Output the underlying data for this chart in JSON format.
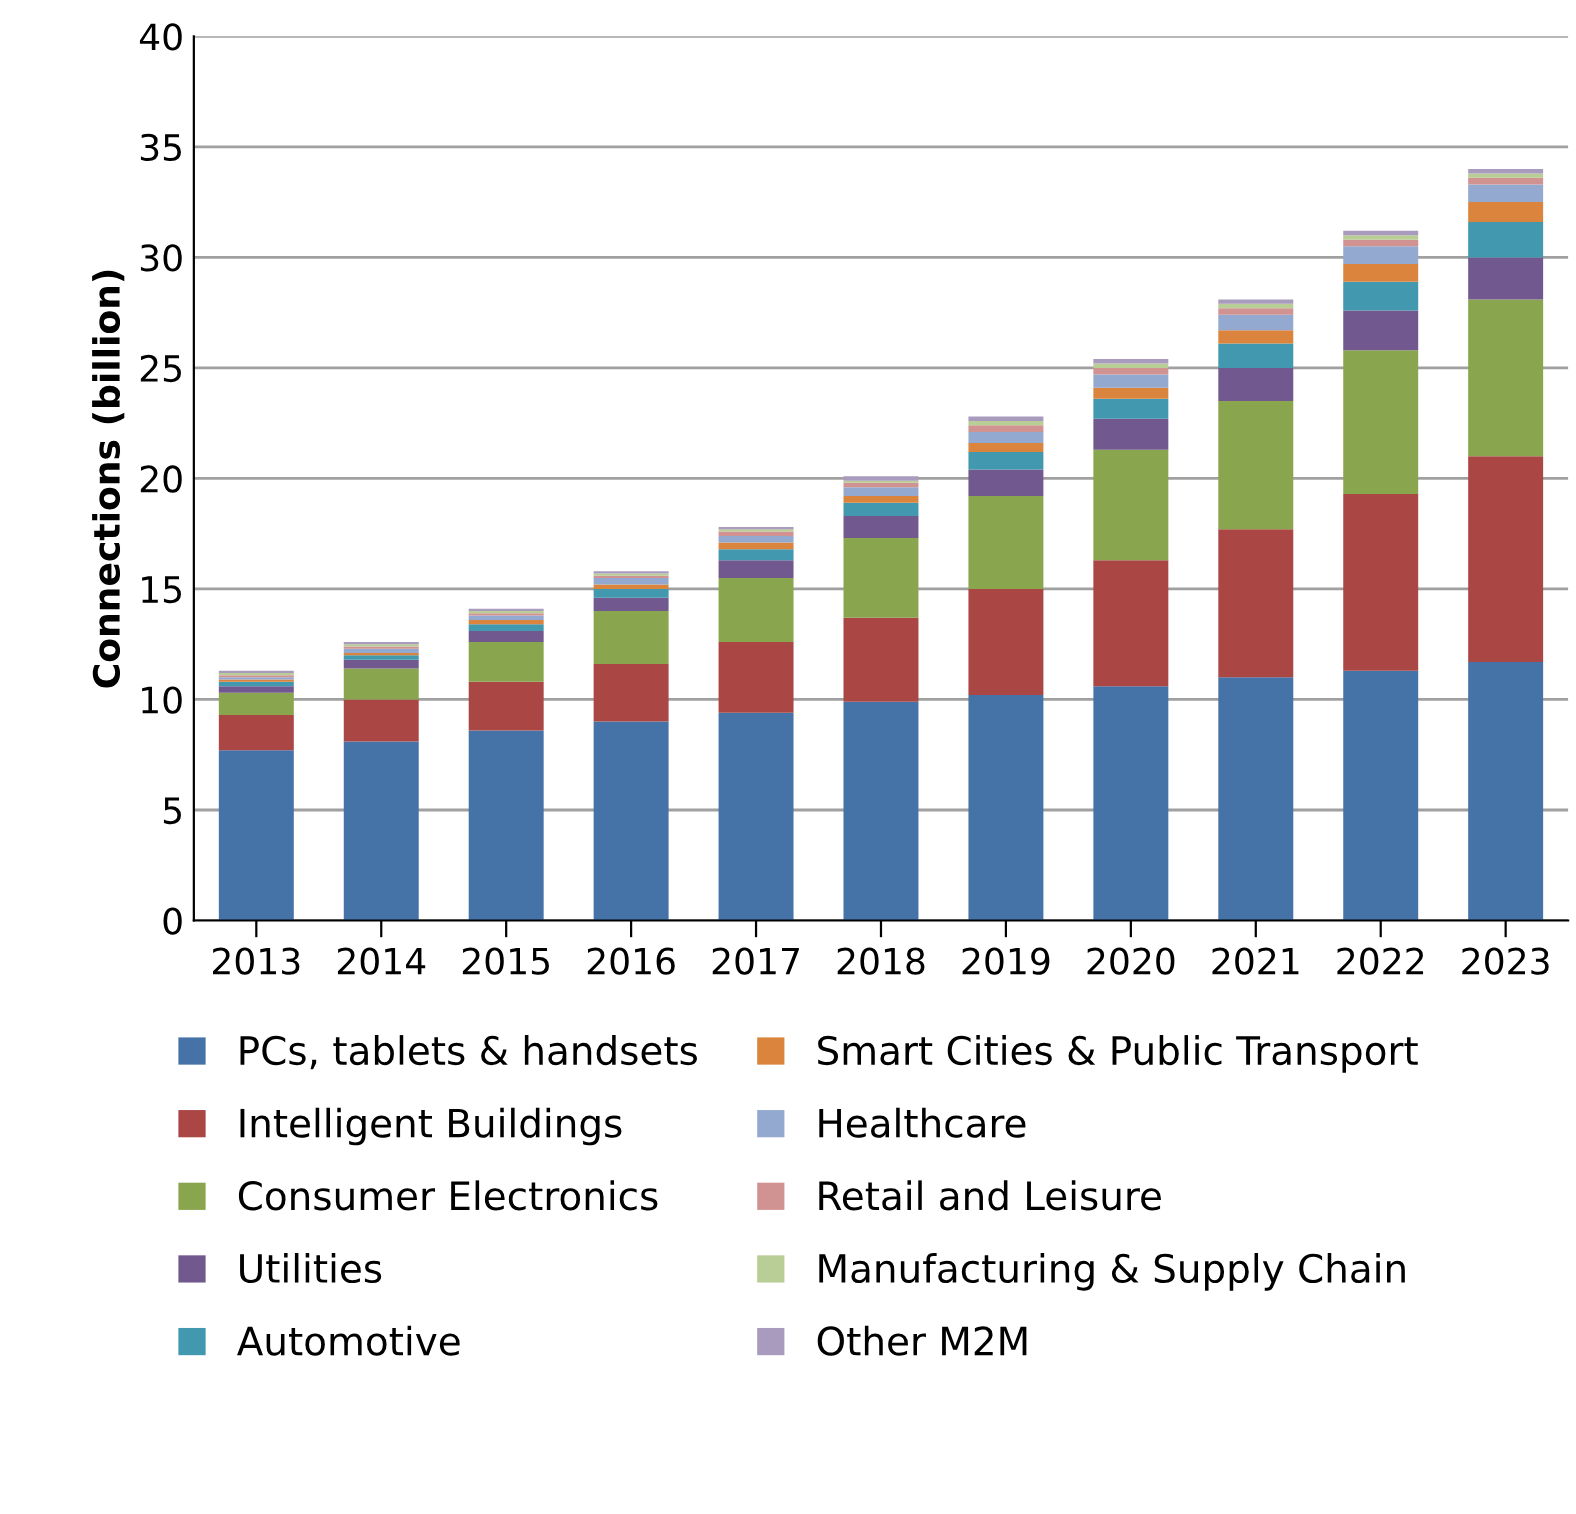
{
  "chart_data": {
    "type": "bar",
    "stacked": true,
    "ylabel": "Connections (billion)",
    "categories": [
      "2013",
      "2014",
      "2015",
      "2016",
      "2017",
      "2018",
      "2019",
      "2020",
      "2021",
      "2022",
      "2023"
    ],
    "ylim": [
      0,
      40
    ],
    "yticks": [
      0,
      5,
      10,
      15,
      20,
      25,
      30,
      35,
      40
    ],
    "grid": "y",
    "legend": "bottom",
    "series": [
      {
        "name": "PCs, tablets & handsets",
        "color": "#4572a7",
        "values": [
          7.7,
          8.1,
          8.6,
          9.0,
          9.4,
          9.9,
          10.2,
          10.6,
          11.0,
          11.3,
          11.7
        ]
      },
      {
        "name": "Intelligent Buildings",
        "color": "#aa4643",
        "values": [
          1.6,
          1.9,
          2.2,
          2.6,
          3.2,
          3.8,
          4.8,
          5.7,
          6.7,
          8.0,
          9.3
        ]
      },
      {
        "name": "Consumer Electronics",
        "color": "#89a54e",
        "values": [
          1.0,
          1.4,
          1.8,
          2.4,
          2.9,
          3.6,
          4.2,
          5.0,
          5.8,
          6.5,
          7.1
        ]
      },
      {
        "name": "Utilities",
        "color": "#71588f",
        "values": [
          0.3,
          0.4,
          0.5,
          0.6,
          0.8,
          1.0,
          1.2,
          1.4,
          1.5,
          1.8,
          1.9
        ]
      },
      {
        "name": "Automotive",
        "color": "#4198af",
        "values": [
          0.2,
          0.2,
          0.3,
          0.4,
          0.5,
          0.6,
          0.8,
          0.9,
          1.1,
          1.3,
          1.6
        ]
      },
      {
        "name": "Smart Cities & Public Transport",
        "color": "#db843d",
        "values": [
          0.1,
          0.1,
          0.2,
          0.2,
          0.3,
          0.3,
          0.4,
          0.5,
          0.6,
          0.8,
          0.9
        ]
      },
      {
        "name": "Healthcare",
        "color": "#93a9cf",
        "values": [
          0.1,
          0.2,
          0.2,
          0.3,
          0.3,
          0.4,
          0.5,
          0.6,
          0.7,
          0.8,
          0.8
        ]
      },
      {
        "name": "Retail and Leisure",
        "color": "#d19392",
        "values": [
          0.1,
          0.1,
          0.1,
          0.1,
          0.2,
          0.2,
          0.3,
          0.3,
          0.3,
          0.3,
          0.3
        ]
      },
      {
        "name": "Manufacturing & Supply Chain",
        "color": "#b9cd96",
        "values": [
          0.1,
          0.1,
          0.1,
          0.1,
          0.1,
          0.1,
          0.2,
          0.2,
          0.2,
          0.2,
          0.2
        ]
      },
      {
        "name": "Other M2M",
        "color": "#a99bbd",
        "values": [
          0.1,
          0.1,
          0.1,
          0.1,
          0.1,
          0.2,
          0.2,
          0.2,
          0.2,
          0.2,
          0.2
        ]
      }
    ]
  }
}
